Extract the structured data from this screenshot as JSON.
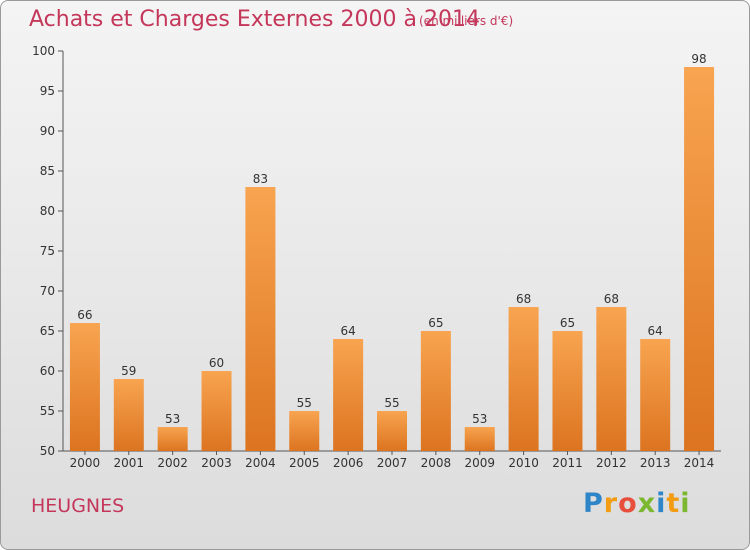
{
  "chart_data": {
    "type": "bar",
    "title": "Achats et Charges Externes 2000 à 2014",
    "subtitle": "(en milliers d'€)",
    "categories": [
      "2000",
      "2001",
      "2002",
      "2003",
      "2004",
      "2005",
      "2006",
      "2007",
      "2008",
      "2009",
      "2010",
      "2011",
      "2012",
      "2013",
      "2014"
    ],
    "values": [
      66,
      59,
      53,
      60,
      83,
      55,
      64,
      55,
      65,
      53,
      68,
      65,
      68,
      64,
      98
    ],
    "ylim": [
      50,
      100
    ],
    "yticks": [
      50,
      55,
      60,
      65,
      70,
      75,
      80,
      85,
      90,
      95,
      100
    ],
    "grid": false,
    "bar_color": "#f0913a"
  },
  "commune": "HEUGNES",
  "logo": {
    "letters": [
      "P",
      "r",
      "o",
      "x",
      "i",
      "t",
      "i"
    ],
    "colors": [
      "#2e86c8",
      "#f39c12",
      "#e84e3c",
      "#7cb82f",
      "#2e86c8",
      "#f39c12",
      "#7cb82f"
    ]
  }
}
